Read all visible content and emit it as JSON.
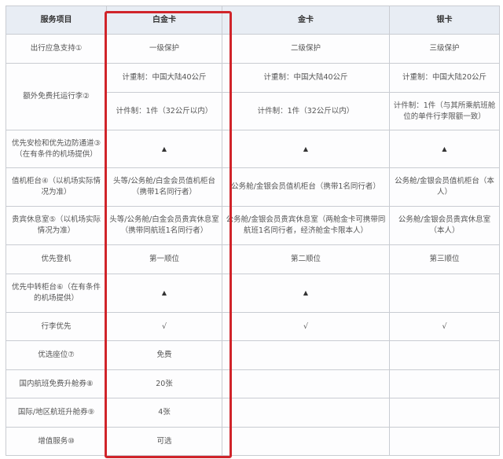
{
  "accent_color": "#d0242a",
  "headers": [
    "服务项目",
    "白金卡",
    "金卡",
    "银卡"
  ],
  "rows": {
    "emergency": {
      "label": "出行应急支持①",
      "platinum": "一级保护",
      "gold": "二级保护",
      "silver": "三级保护"
    },
    "baggage": {
      "label": "额外免费托运行李②",
      "weight": {
        "platinum": "计重制：中国大陆40公斤",
        "gold": "计重制：中国大陆40公斤",
        "silver": "计重制：中国大陆20公斤"
      },
      "piece": {
        "platinum": "计件制：1件（32公斤以内）",
        "gold": "计件制：1件（32公斤以内）",
        "silver": "计件制：1件（与其所乘航班舱位的单件行李限额一致）"
      }
    },
    "security": {
      "label": "优先安检和优先边防通道③（在有条件的机场提供）",
      "platinum": "▲",
      "gold": "▲",
      "silver": "▲"
    },
    "checkin": {
      "label": "值机柜台④（以机场实际情况为准）",
      "platinum": "头等/公务舱/白金会员值机柜台（携带1名同行者）",
      "gold": "公务舱/金银会员值机柜台（携带1名同行者）",
      "silver": "公务舱/金银会员值机柜台（本人）"
    },
    "lounge": {
      "label": "贵宾休息室⑤（以机场实际情况为准）",
      "platinum": "头等/公务舱/白金会员贵宾休息室（携带同航班1名同行者）",
      "gold": "公务舱/金银会员贵宾休息室（两舱金卡可携带同航班1名同行者，经济舱金卡限本人）",
      "silver": "公务舱/金银会员贵宾休息室（本人）"
    },
    "boarding": {
      "label": "优先登机",
      "platinum": "第一顺位",
      "gold": "第二顺位",
      "silver": "第三顺位"
    },
    "transfer": {
      "label": "优先中转柜台⑥（在有条件的机场提供）",
      "platinum": "▲",
      "gold": "▲",
      "silver": ""
    },
    "luggage": {
      "label": "行李优先",
      "platinum": "√",
      "gold": "√",
      "silver": "√"
    },
    "seat": {
      "label": "优选座位⑦",
      "platinum": "免费",
      "gold": "",
      "silver": ""
    },
    "domestic_upgrade": {
      "label": "国内航班免费升舱券⑧",
      "platinum": "20张",
      "gold": "",
      "silver": ""
    },
    "intl_upgrade": {
      "label": "国际/地区航班升舱券⑨",
      "platinum": "4张",
      "gold": "",
      "silver": ""
    },
    "value_added": {
      "label": "增值服务⑩",
      "platinum": "可选",
      "gold": "",
      "silver": ""
    }
  }
}
